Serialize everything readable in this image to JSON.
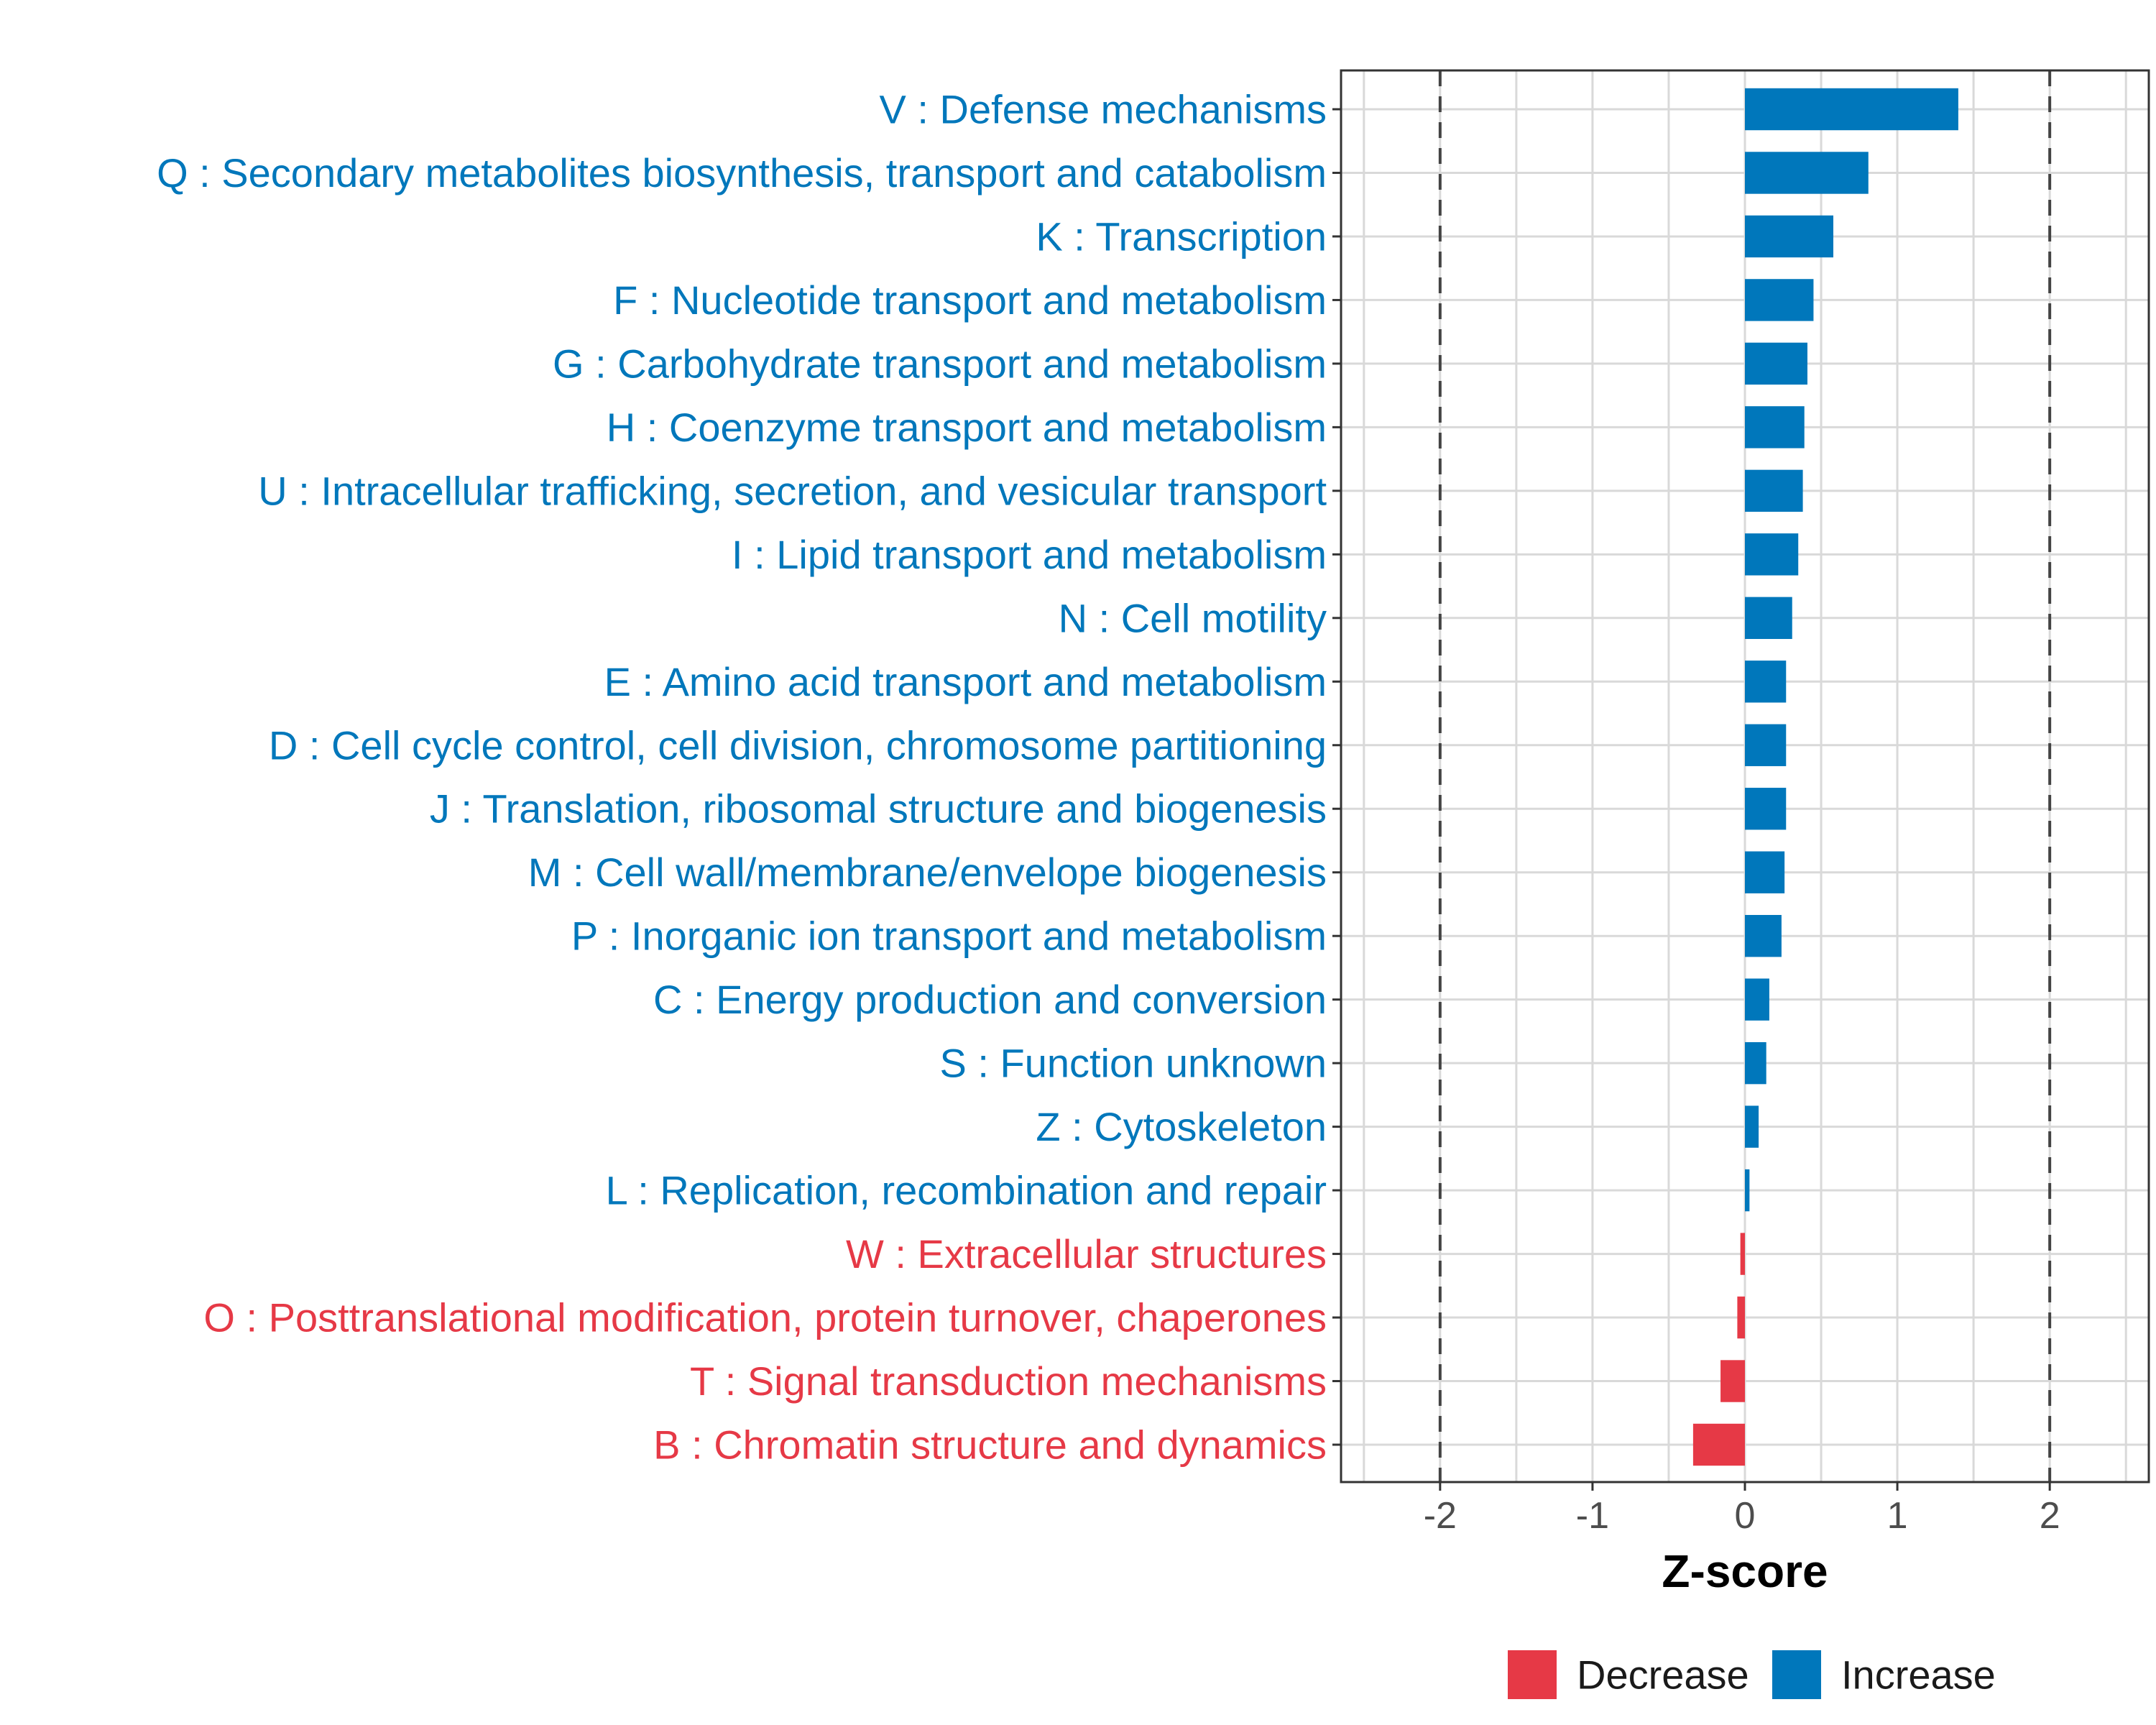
{
  "chart_data": {
    "type": "bar",
    "orientation": "horizontal",
    "xlabel": "Z-score",
    "xlim": [
      -2.65,
      2.65
    ],
    "x_ticks": [
      -2,
      -1,
      0,
      1,
      2
    ],
    "x_tick_labels": [
      "-2",
      "-1",
      "0",
      "1",
      "2"
    ],
    "reference_lines": [
      -2,
      2
    ],
    "grid": true,
    "legend": {
      "placement": "bottom",
      "items": [
        {
          "label": "Decrease",
          "color": "#E63946"
        },
        {
          "label": "Increase",
          "color": "#0077BB"
        }
      ]
    },
    "categories": [
      {
        "label": "V : Defense mechanisms",
        "value": 1.4,
        "direction": "Increase"
      },
      {
        "label": "Q : Secondary metabolites biosynthesis, transport and catabolism",
        "value": 0.81,
        "direction": "Increase"
      },
      {
        "label": "K : Transcription",
        "value": 0.58,
        "direction": "Increase"
      },
      {
        "label": "F : Nucleotide transport and metabolism",
        "value": 0.45,
        "direction": "Increase"
      },
      {
        "label": "G : Carbohydrate transport and metabolism",
        "value": 0.41,
        "direction": "Increase"
      },
      {
        "label": "H : Coenzyme transport and metabolism",
        "value": 0.39,
        "direction": "Increase"
      },
      {
        "label": "U : Intracellular trafficking, secretion, and vesicular transport",
        "value": 0.38,
        "direction": "Increase"
      },
      {
        "label": "I : Lipid transport and metabolism",
        "value": 0.35,
        "direction": "Increase"
      },
      {
        "label": "N : Cell motility",
        "value": 0.31,
        "direction": "Increase"
      },
      {
        "label": "E : Amino acid transport and metabolism",
        "value": 0.27,
        "direction": "Increase"
      },
      {
        "label": "D : Cell cycle control, cell division, chromosome partitioning",
        "value": 0.27,
        "direction": "Increase"
      },
      {
        "label": "J : Translation, ribosomal structure and biogenesis",
        "value": 0.27,
        "direction": "Increase"
      },
      {
        "label": "M : Cell wall/membrane/envelope biogenesis",
        "value": 0.26,
        "direction": "Increase"
      },
      {
        "label": "P : Inorganic ion transport and metabolism",
        "value": 0.24,
        "direction": "Increase"
      },
      {
        "label": "C : Energy production and conversion",
        "value": 0.16,
        "direction": "Increase"
      },
      {
        "label": "S : Function unknown",
        "value": 0.14,
        "direction": "Increase"
      },
      {
        "label": "Z : Cytoskeleton",
        "value": 0.09,
        "direction": "Increase"
      },
      {
        "label": "L : Replication, recombination and repair",
        "value": 0.03,
        "direction": "Increase"
      },
      {
        "label": "W : Extracellular structures",
        "value": -0.03,
        "direction": "Decrease"
      },
      {
        "label": "O : Posttranslational modification, protein turnover, chaperones",
        "value": -0.05,
        "direction": "Decrease"
      },
      {
        "label": "T : Signal transduction mechanisms",
        "value": -0.16,
        "direction": "Decrease"
      },
      {
        "label": "B : Chromatin structure and dynamics",
        "value": -0.34,
        "direction": "Decrease"
      }
    ]
  }
}
